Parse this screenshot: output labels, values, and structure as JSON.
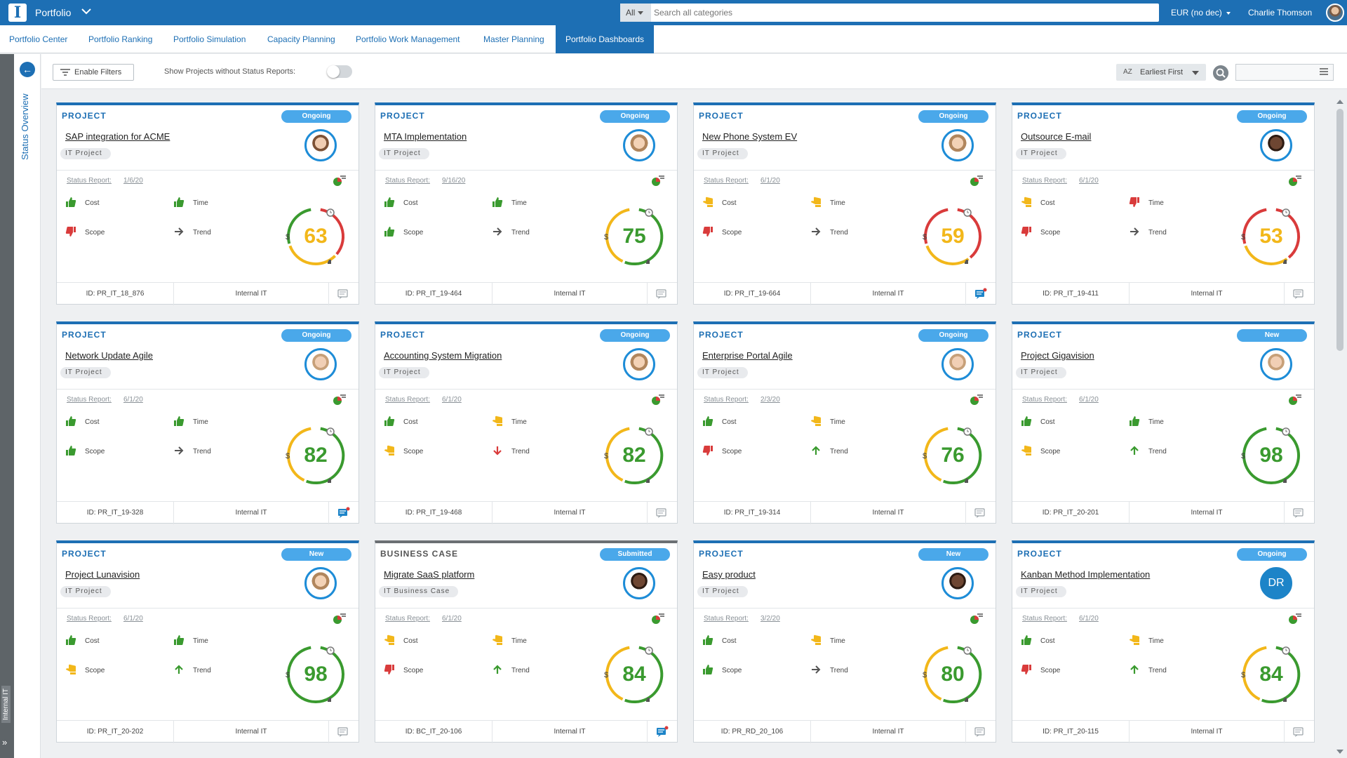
{
  "app": {
    "title": "Portfolio",
    "logo_letter": "I",
    "search_scope": "All",
    "search_placeholder": "Search all categories",
    "currency": "EUR (no dec)",
    "user_name": "Charlie Thomson"
  },
  "nav": {
    "tabs": [
      {
        "label": "Portfolio Center"
      },
      {
        "label": "Portfolio Ranking"
      },
      {
        "label": "Portfolio Simulation"
      },
      {
        "label": "Capacity Planning"
      },
      {
        "label": "Portfolio Work Management"
      },
      {
        "label": "Master Planning"
      },
      {
        "label": "Portfolio Dashboards"
      }
    ],
    "active_index": 6
  },
  "rail": {
    "vertical_label": "Status Overview",
    "bottom_tag": "Internal IT"
  },
  "toolbar": {
    "enable_filters": "Enable Filters",
    "show_without_reports": "Show Projects without Status Reports:",
    "toggle_on": false,
    "sort_icon_text": "AZ",
    "sort_label": "Earliest First"
  },
  "labels": {
    "status_report": "Status Report:",
    "cost": "Cost",
    "time": "Time",
    "scope": "Scope",
    "trend": "Trend",
    "currency_symbol": "$"
  },
  "colors": {
    "primary": "#1d6fb4",
    "pill": "#4aa8ea",
    "good": "#3a9a2f",
    "warn": "#f2b71a",
    "bad": "#d93b3b"
  },
  "cards": [
    {
      "type": "PROJECT",
      "status": "Ongoing",
      "title": "SAP integration for ACME",
      "chip": "IT Project",
      "date": "1/6/20",
      "cost": "good",
      "time": "good",
      "scope": "bad",
      "trend": "right",
      "score": "63",
      "id": "ID: PR_IT_18_876",
      "org": "Internal IT",
      "avatar": "a1",
      "comment_active": false
    },
    {
      "type": "PROJECT",
      "status": "Ongoing",
      "title": "MTA Implementation",
      "chip": "IT Project",
      "date": "9/16/20",
      "cost": "good",
      "time": "good",
      "scope": "good",
      "trend": "right",
      "score": "75",
      "id": "ID: PR_IT_19-464",
      "org": "Internal IT",
      "avatar": "a2",
      "comment_active": false
    },
    {
      "type": "PROJECT",
      "status": "Ongoing",
      "title": "New Phone System EV",
      "chip": "IT Project",
      "date": "6/1/20",
      "cost": "warn",
      "time": "warn",
      "scope": "bad",
      "trend": "right",
      "score": "59",
      "id": "ID: PR_IT_19-664",
      "org": "Internal IT",
      "avatar": "a2",
      "comment_active": true
    },
    {
      "type": "PROJECT",
      "status": "Ongoing",
      "title": "Outsource E-mail",
      "chip": "IT Project",
      "date": "6/1/20",
      "cost": "warn",
      "time": "bad",
      "scope": "bad",
      "trend": "right",
      "score": "53",
      "id": "ID: PR_IT_19-411",
      "org": "Internal IT",
      "avatar": "a3",
      "comment_active": false
    },
    {
      "type": "PROJECT",
      "status": "Ongoing",
      "title": "Network Update Agile",
      "chip": "IT Project",
      "date": "6/1/20",
      "cost": "good",
      "time": "good",
      "scope": "good",
      "trend": "right",
      "score": "82",
      "id": "ID: PR_IT_19-328",
      "org": "Internal IT",
      "avatar": "a4",
      "comment_active": true
    },
    {
      "type": "PROJECT",
      "status": "Ongoing",
      "title": "Accounting System Migration",
      "chip": "IT Project",
      "date": "6/1/20",
      "cost": "good",
      "time": "warn",
      "scope": "warn",
      "trend": "down",
      "score": "82",
      "id": "ID: PR_IT_19-468",
      "org": "Internal IT",
      "avatar": "a2",
      "comment_active": false
    },
    {
      "type": "PROJECT",
      "status": "Ongoing",
      "title": "Enterprise Portal Agile",
      "chip": "IT Project",
      "date": "2/3/20",
      "cost": "good",
      "time": "warn",
      "scope": "bad",
      "trend": "up",
      "score": "76",
      "id": "ID: PR_IT_19-314",
      "org": "Internal IT",
      "avatar": "a4",
      "comment_active": false
    },
    {
      "type": "PROJECT",
      "status": "New",
      "title": "Project Gigavision",
      "chip": "IT Project",
      "date": "6/1/20",
      "cost": "good",
      "time": "good",
      "scope": "warn",
      "trend": "up",
      "score": "98",
      "id": "ID: PR_IT_20-201",
      "org": "Internal IT",
      "avatar": "a4",
      "comment_active": false
    },
    {
      "type": "PROJECT",
      "status": "New",
      "title": "Project Lunavision",
      "chip": "IT Project",
      "date": "6/1/20",
      "cost": "good",
      "time": "good",
      "scope": "warn",
      "trend": "up",
      "score": "98",
      "id": "ID: PR_IT_20-202",
      "org": "Internal IT",
      "avatar": "a2",
      "comment_active": false
    },
    {
      "type": "BUSINESS CASE",
      "status": "Submitted",
      "title": "Migrate SaaS platform",
      "chip": "IT Business Case",
      "date": "6/1/20",
      "cost": "warn",
      "time": "warn",
      "scope": "bad",
      "trend": "up",
      "score": "84",
      "id": "ID: BC_IT_20-106",
      "org": "Internal IT",
      "avatar": "a3",
      "comment_active": true
    },
    {
      "type": "PROJECT",
      "status": "New",
      "title": "Easy product",
      "chip": "IT Project",
      "date": "3/2/20",
      "cost": "good",
      "time": "warn",
      "scope": "good",
      "trend": "right",
      "score": "80",
      "id": "ID: PR_RD_20_106",
      "org": "Internal IT",
      "avatar": "a3",
      "comment_active": false
    },
    {
      "type": "PROJECT",
      "status": "Ongoing",
      "title": "Kanban Method Implementation",
      "chip": "IT Project",
      "date": "6/1/20",
      "cost": "good",
      "time": "warn",
      "scope": "bad",
      "trend": "up",
      "score": "84",
      "id": "ID: PR_IT_20-115",
      "org": "Internal IT",
      "avatar": "initials",
      "initials": "DR",
      "comment_active": false
    }
  ]
}
